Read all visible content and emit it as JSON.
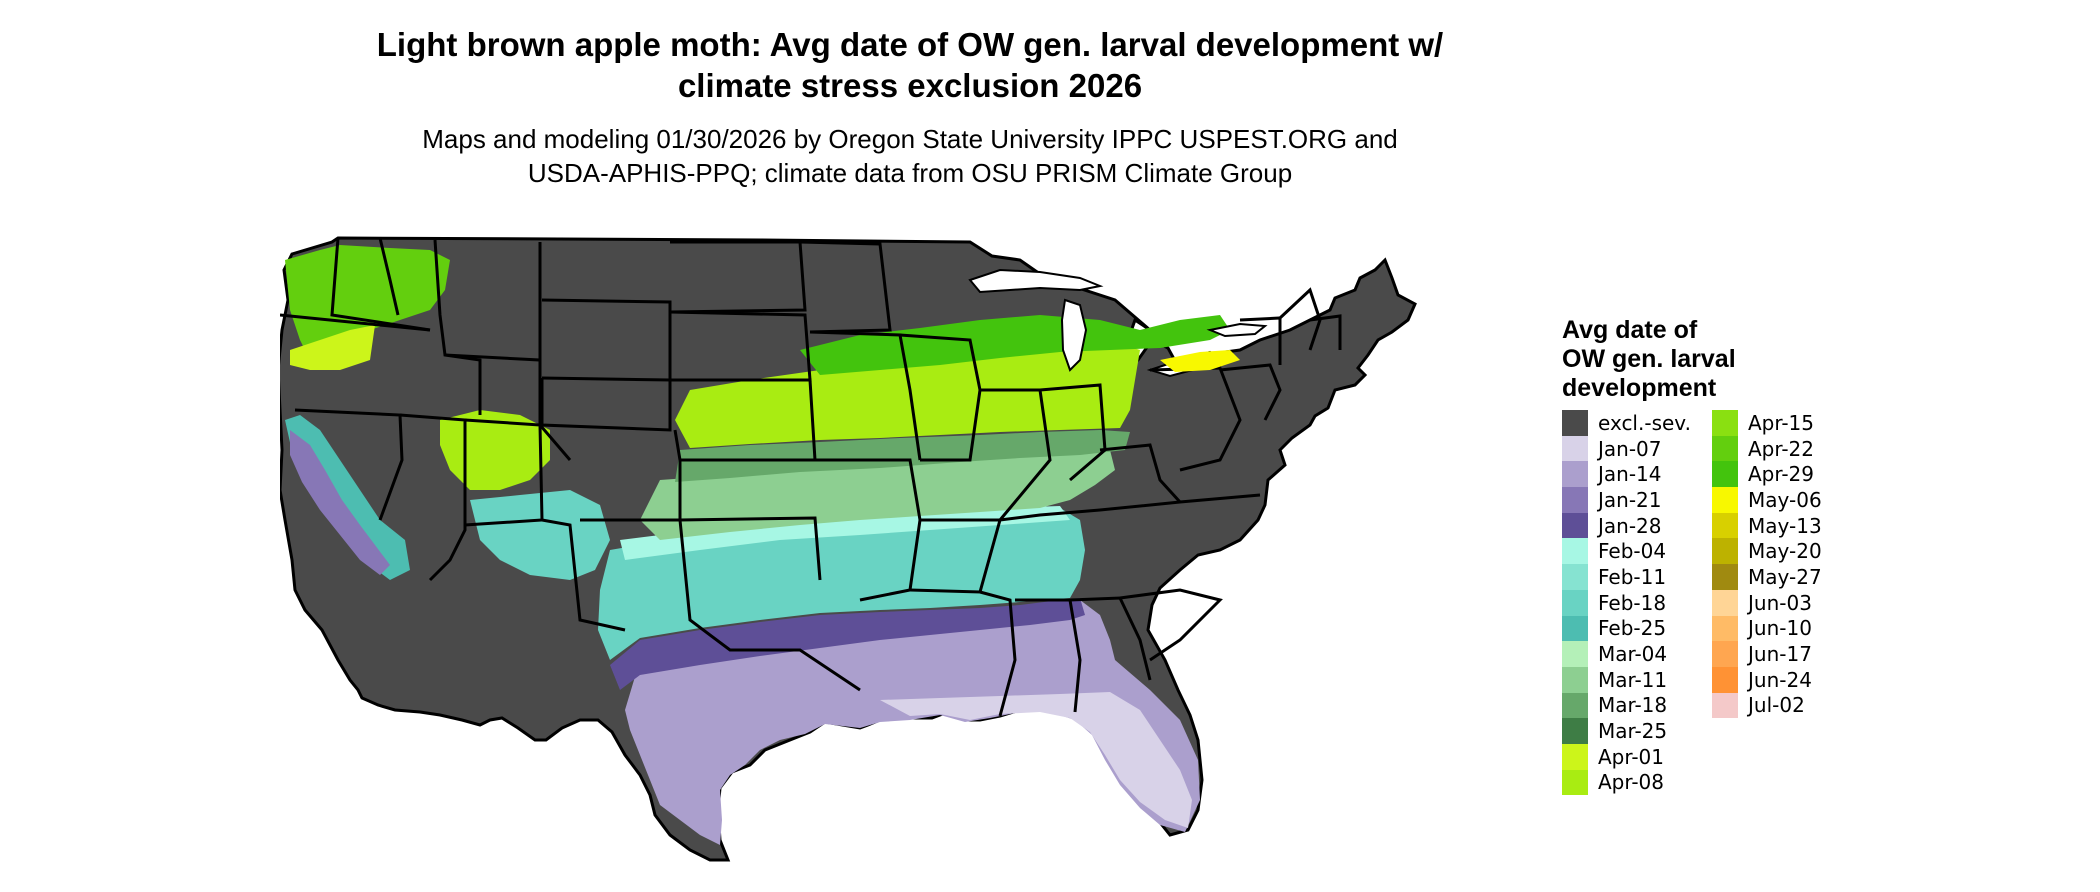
{
  "title_line1": "Light brown apple moth: Avg date of OW gen. larval development w/",
  "title_line2": "climate stress exclusion 2026",
  "subtitle_line1": "Maps and modeling 01/30/2026 by Oregon State University IPPC USPEST.ORG and",
  "subtitle_line2": "USDA-APHIS-PPQ; climate data from OSU PRISM Climate Group",
  "legend": {
    "title_line1": "Avg date of",
    "title_line2": "OW gen. larval",
    "title_line3": "development",
    "items": [
      {
        "label": "excl.-sev.",
        "color": "#4a4a4a"
      },
      {
        "label": "Jan-07",
        "color": "#d8d2e8"
      },
      {
        "label": "Jan-14",
        "color": "#ab9fcd"
      },
      {
        "label": "Jan-21",
        "color": "#8777b6"
      },
      {
        "label": "Jan-28",
        "color": "#5e4f97"
      },
      {
        "label": "Feb-04",
        "color": "#a7f7e4"
      },
      {
        "label": "Feb-11",
        "color": "#86e3d1"
      },
      {
        "label": "Feb-18",
        "color": "#69d3c3"
      },
      {
        "label": "Feb-25",
        "color": "#4dbdb1"
      },
      {
        "label": "Mar-04",
        "color": "#b4f0b8"
      },
      {
        "label": "Mar-11",
        "color": "#8dcf91"
      },
      {
        "label": "Mar-18",
        "color": "#66a86a"
      },
      {
        "label": "Mar-25",
        "color": "#3e7d45"
      },
      {
        "label": "Apr-01",
        "color": "#ccf51a"
      },
      {
        "label": "Apr-08",
        "color": "#a9ec12"
      },
      {
        "label": "Apr-15",
        "color": "#8ae011"
      },
      {
        "label": "Apr-22",
        "color": "#63cf0e"
      },
      {
        "label": "Apr-29",
        "color": "#43c40d"
      },
      {
        "label": "May-06",
        "color": "#f8f800"
      },
      {
        "label": "May-13",
        "color": "#d8d000"
      },
      {
        "label": "May-20",
        "color": "#bdb200"
      },
      {
        "label": "May-27",
        "color": "#a08a10"
      },
      {
        "label": "Jun-03",
        "color": "#ffd596"
      },
      {
        "label": "Jun-10",
        "color": "#ffbb66"
      },
      {
        "label": "Jun-17",
        "color": "#ffa650"
      },
      {
        "label": "Jun-24",
        "color": "#ff9234"
      },
      {
        "label": "Jul-02",
        "color": "#f4c9c9"
      }
    ]
  }
}
